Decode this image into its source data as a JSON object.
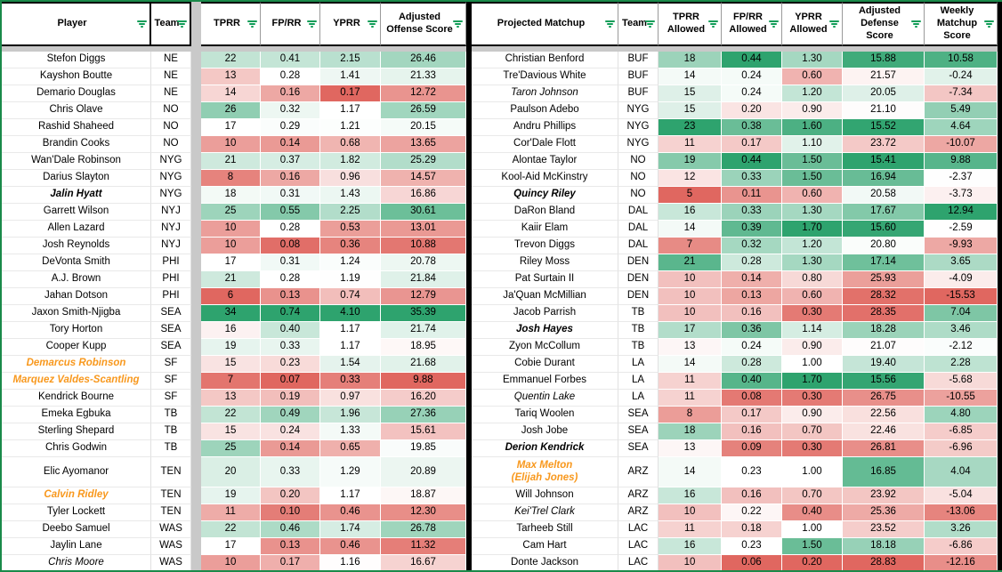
{
  "colors": {
    "scale_red": "#e06760",
    "scale_mid": "#ffffff",
    "scale_green": "#2ea36e",
    "filter_icon_green": "#0f9d58",
    "sheet_border_green": "#1a8a4a",
    "special_name_orange": "#f8981d",
    "pane_divider_gray": "#c9c9c9",
    "table_border_black": "#000000"
  },
  "left_table": {
    "title": "offense",
    "columns": [
      {
        "key": "player",
        "label": "Player",
        "type": "text"
      },
      {
        "key": "team",
        "label": "Team",
        "type": "text"
      },
      {
        "key": "tprr",
        "label": "TPRR",
        "type": "num"
      },
      {
        "key": "fprr",
        "label": "FP/RR",
        "type": "num"
      },
      {
        "key": "yprr",
        "label": "YPRR",
        "type": "num"
      },
      {
        "key": "aos",
        "label": "Adjusted Offense Score",
        "type": "num"
      }
    ],
    "rows": [
      {
        "player": "Stefon Diggs",
        "team": "NE",
        "tprr": "22",
        "fprr": "0.41",
        "yprr": "2.15",
        "aos": "26.46",
        "style": "normal"
      },
      {
        "player": "Kayshon Boutte",
        "team": "NE",
        "tprr": "13",
        "fprr": "0.28",
        "yprr": "1.41",
        "aos": "21.33",
        "style": "normal"
      },
      {
        "player": "Demario Douglas",
        "team": "NE",
        "tprr": "14",
        "fprr": "0.16",
        "yprr": "0.17",
        "aos": "12.72",
        "style": "normal"
      },
      {
        "player": "Chris Olave",
        "team": "NO",
        "tprr": "26",
        "fprr": "0.32",
        "yprr": "1.17",
        "aos": "26.59",
        "style": "normal"
      },
      {
        "player": "Rashid Shaheed",
        "team": "NO",
        "tprr": "17",
        "fprr": "0.29",
        "yprr": "1.21",
        "aos": "20.15",
        "style": "normal"
      },
      {
        "player": "Brandin Cooks",
        "team": "NO",
        "tprr": "10",
        "fprr": "0.14",
        "yprr": "0.68",
        "aos": "13.65",
        "style": "normal"
      },
      {
        "player": "Wan'Dale Robinson",
        "team": "NYG",
        "tprr": "21",
        "fprr": "0.37",
        "yprr": "1.82",
        "aos": "25.29",
        "style": "normal"
      },
      {
        "player": "Darius Slayton",
        "team": "NYG",
        "tprr": "8",
        "fprr": "0.16",
        "yprr": "0.96",
        "aos": "14.57",
        "style": "normal"
      },
      {
        "player": "Jalin Hyatt",
        "team": "NYG",
        "tprr": "18",
        "fprr": "0.31",
        "yprr": "1.43",
        "aos": "16.86",
        "style": "bold-italic"
      },
      {
        "player": "Garrett Wilson",
        "team": "NYJ",
        "tprr": "25",
        "fprr": "0.55",
        "yprr": "2.25",
        "aos": "30.61",
        "style": "normal"
      },
      {
        "player": "Allen Lazard",
        "team": "NYJ",
        "tprr": "10",
        "fprr": "0.28",
        "yprr": "0.53",
        "aos": "13.01",
        "style": "normal"
      },
      {
        "player": "Josh Reynolds",
        "team": "NYJ",
        "tprr": "10",
        "fprr": "0.08",
        "yprr": "0.36",
        "aos": "10.88",
        "style": "normal"
      },
      {
        "player": "DeVonta Smith",
        "team": "PHI",
        "tprr": "17",
        "fprr": "0.31",
        "yprr": "1.24",
        "aos": "20.78",
        "style": "normal"
      },
      {
        "player": "A.J. Brown",
        "team": "PHI",
        "tprr": "21",
        "fprr": "0.28",
        "yprr": "1.19",
        "aos": "21.84",
        "style": "normal"
      },
      {
        "player": "Jahan Dotson",
        "team": "PHI",
        "tprr": "6",
        "fprr": "0.13",
        "yprr": "0.74",
        "aos": "12.79",
        "style": "normal"
      },
      {
        "player": "Jaxon Smith-Njigba",
        "team": "SEA",
        "tprr": "34",
        "fprr": "0.74",
        "yprr": "4.10",
        "aos": "35.39",
        "style": "normal"
      },
      {
        "player": "Tory Horton",
        "team": "SEA",
        "tprr": "16",
        "fprr": "0.40",
        "yprr": "1.17",
        "aos": "21.74",
        "style": "normal"
      },
      {
        "player": "Cooper Kupp",
        "team": "SEA",
        "tprr": "19",
        "fprr": "0.33",
        "yprr": "1.17",
        "aos": "18.95",
        "style": "normal"
      },
      {
        "player": "Demarcus Robinson",
        "team": "SF",
        "tprr": "15",
        "fprr": "0.23",
        "yprr": "1.54",
        "aos": "21.68",
        "style": "orange-italic"
      },
      {
        "player": "Marquez Valdes-Scantling",
        "team": "SF",
        "tprr": "7",
        "fprr": "0.07",
        "yprr": "0.33",
        "aos": "9.88",
        "style": "orange-italic"
      },
      {
        "player": "Kendrick Bourne",
        "team": "SF",
        "tprr": "13",
        "fprr": "0.19",
        "yprr": "0.97",
        "aos": "16.20",
        "style": "normal"
      },
      {
        "player": "Emeka Egbuka",
        "team": "TB",
        "tprr": "22",
        "fprr": "0.49",
        "yprr": "1.96",
        "aos": "27.36",
        "style": "normal"
      },
      {
        "player": "Sterling Shepard",
        "team": "TB",
        "tprr": "15",
        "fprr": "0.24",
        "yprr": "1.33",
        "aos": "15.61",
        "style": "normal"
      },
      {
        "player": "Chris Godwin",
        "team": "TB",
        "tprr": "25",
        "fprr": "0.14",
        "yprr": "0.65",
        "aos": "19.85",
        "style": "normal"
      },
      {
        "player": "Elic Ayomanor",
        "team": "TEN",
        "tprr": "20",
        "fprr": "0.33",
        "yprr": "1.29",
        "aos": "20.89",
        "style": "normal",
        "tall": true
      },
      {
        "player": "Calvin Ridley",
        "team": "TEN",
        "tprr": "19",
        "fprr": "0.20",
        "yprr": "1.17",
        "aos": "18.87",
        "style": "orange-italic"
      },
      {
        "player": "Tyler Lockett",
        "team": "TEN",
        "tprr": "11",
        "fprr": "0.10",
        "yprr": "0.46",
        "aos": "12.30",
        "style": "normal"
      },
      {
        "player": "Deebo Samuel",
        "team": "WAS",
        "tprr": "22",
        "fprr": "0.46",
        "yprr": "1.74",
        "aos": "26.78",
        "style": "normal"
      },
      {
        "player": "Jaylin Lane",
        "team": "WAS",
        "tprr": "17",
        "fprr": "0.13",
        "yprr": "0.46",
        "aos": "11.32",
        "style": "normal"
      },
      {
        "player": "Chris Moore",
        "team": "WAS",
        "tprr": "10",
        "fprr": "0.17",
        "yprr": "1.16",
        "aos": "16.67",
        "style": "italic"
      }
    ]
  },
  "right_table": {
    "title": "defense",
    "columns": [
      {
        "key": "matchup",
        "label": "Projected Matchup",
        "type": "text"
      },
      {
        "key": "team",
        "label": "Team",
        "type": "text"
      },
      {
        "key": "tprr",
        "label": "TPRR Allowed",
        "type": "num"
      },
      {
        "key": "fprr",
        "label": "FP/RR Allowed",
        "type": "num"
      },
      {
        "key": "yprr",
        "label": "YPRR Allowed",
        "type": "num"
      },
      {
        "key": "ads",
        "label": "Adjusted Defense Score",
        "type": "num",
        "invert": true
      },
      {
        "key": "wms",
        "label": "Weekly Matchup Score",
        "type": "num"
      }
    ],
    "rows": [
      {
        "matchup": "Christian Benford",
        "team": "BUF",
        "tprr": "18",
        "fprr": "0.44",
        "yprr": "1.30",
        "ads": "15.88",
        "wms": "10.58",
        "style": "normal"
      },
      {
        "matchup": "Tre'Davious White",
        "team": "BUF",
        "tprr": "14",
        "fprr": "0.24",
        "yprr": "0.60",
        "ads": "21.57",
        "wms": "-0.24",
        "style": "normal"
      },
      {
        "matchup": "Taron Johnson",
        "team": "BUF",
        "tprr": "15",
        "fprr": "0.24",
        "yprr": "1.20",
        "ads": "20.05",
        "wms": "-7.34",
        "style": "italic"
      },
      {
        "matchup": "Paulson Adebo",
        "team": "NYG",
        "tprr": "15",
        "fprr": "0.20",
        "yprr": "0.90",
        "ads": "21.10",
        "wms": "5.49",
        "style": "normal"
      },
      {
        "matchup": "Andru Phillips",
        "team": "NYG",
        "tprr": "23",
        "fprr": "0.38",
        "yprr": "1.60",
        "ads": "15.52",
        "wms": "4.64",
        "style": "normal"
      },
      {
        "matchup": "Cor'Dale Flott",
        "team": "NYG",
        "tprr": "11",
        "fprr": "0.17",
        "yprr": "1.10",
        "ads": "23.72",
        "wms": "-10.07",
        "style": "normal"
      },
      {
        "matchup": "Alontae Taylor",
        "team": "NO",
        "tprr": "19",
        "fprr": "0.44",
        "yprr": "1.50",
        "ads": "15.41",
        "wms": "9.88",
        "style": "normal"
      },
      {
        "matchup": "Kool-Aid McKinstry",
        "team": "NO",
        "tprr": "12",
        "fprr": "0.33",
        "yprr": "1.50",
        "ads": "16.94",
        "wms": "-2.37",
        "style": "normal"
      },
      {
        "matchup": "Quincy Riley",
        "team": "NO",
        "tprr": "5",
        "fprr": "0.11",
        "yprr": "0.60",
        "ads": "20.58",
        "wms": "-3.73",
        "style": "bold-italic"
      },
      {
        "matchup": "DaRon Bland",
        "team": "DAL",
        "tprr": "16",
        "fprr": "0.33",
        "yprr": "1.30",
        "ads": "17.67",
        "wms": "12.94",
        "style": "normal"
      },
      {
        "matchup": "Kaiir Elam",
        "team": "DAL",
        "tprr": "14",
        "fprr": "0.39",
        "yprr": "1.70",
        "ads": "15.60",
        "wms": "-2.59",
        "style": "normal"
      },
      {
        "matchup": "Trevon Diggs",
        "team": "DAL",
        "tprr": "7",
        "fprr": "0.32",
        "yprr": "1.20",
        "ads": "20.80",
        "wms": "-9.93",
        "style": "normal"
      },
      {
        "matchup": "Riley Moss",
        "team": "DEN",
        "tprr": "21",
        "fprr": "0.28",
        "yprr": "1.30",
        "ads": "17.14",
        "wms": "3.65",
        "style": "normal"
      },
      {
        "matchup": "Pat Surtain II",
        "team": "DEN",
        "tprr": "10",
        "fprr": "0.14",
        "yprr": "0.80",
        "ads": "25.93",
        "wms": "-4.09",
        "style": "normal"
      },
      {
        "matchup": "Ja'Quan McMillian",
        "team": "DEN",
        "tprr": "10",
        "fprr": "0.13",
        "yprr": "0.60",
        "ads": "28.32",
        "wms": "-15.53",
        "style": "normal"
      },
      {
        "matchup": "Jacob Parrish",
        "team": "TB",
        "tprr": "10",
        "fprr": "0.16",
        "yprr": "0.30",
        "ads": "28.35",
        "wms": "7.04",
        "style": "normal"
      },
      {
        "matchup": "Josh Hayes",
        "team": "TB",
        "tprr": "17",
        "fprr": "0.36",
        "yprr": "1.14",
        "ads": "18.28",
        "wms": "3.46",
        "style": "bold-italic"
      },
      {
        "matchup": "Zyon McCollum",
        "team": "TB",
        "tprr": "13",
        "fprr": "0.24",
        "yprr": "0.90",
        "ads": "21.07",
        "wms": "-2.12",
        "style": "normal"
      },
      {
        "matchup": "Cobie Durant",
        "team": "LA",
        "tprr": "14",
        "fprr": "0.28",
        "yprr": "1.00",
        "ads": "19.40",
        "wms": "2.28",
        "style": "normal"
      },
      {
        "matchup": "Emmanuel Forbes",
        "team": "LA",
        "tprr": "11",
        "fprr": "0.40",
        "yprr": "1.70",
        "ads": "15.56",
        "wms": "-5.68",
        "style": "normal"
      },
      {
        "matchup": "Quentin Lake",
        "team": "LA",
        "tprr": "11",
        "fprr": "0.08",
        "yprr": "0.30",
        "ads": "26.75",
        "wms": "-10.55",
        "style": "italic"
      },
      {
        "matchup": "Tariq Woolen",
        "team": "SEA",
        "tprr": "8",
        "fprr": "0.17",
        "yprr": "0.90",
        "ads": "22.56",
        "wms": "4.80",
        "style": "normal"
      },
      {
        "matchup": "Josh Jobe",
        "team": "SEA",
        "tprr": "18",
        "fprr": "0.16",
        "yprr": "0.70",
        "ads": "22.46",
        "wms": "-6.85",
        "style": "normal"
      },
      {
        "matchup": "Derion Kendrick",
        "team": "SEA",
        "tprr": "13",
        "fprr": "0.09",
        "yprr": "0.30",
        "ads": "26.81",
        "wms": "-6.96",
        "style": "bold-italic"
      },
      {
        "matchup": "Max Melton\n(Elijah Jones)",
        "team": "ARZ",
        "tprr": "14",
        "fprr": "0.23",
        "yprr": "1.00",
        "ads": "16.85",
        "wms": "4.04",
        "style": "orange-italic",
        "tall": true
      },
      {
        "matchup": "Will Johnson",
        "team": "ARZ",
        "tprr": "16",
        "fprr": "0.16",
        "yprr": "0.70",
        "ads": "23.92",
        "wms": "-5.04",
        "style": "normal"
      },
      {
        "matchup": "Kei'Trel Clark",
        "team": "ARZ",
        "tprr": "10",
        "fprr": "0.22",
        "yprr": "0.40",
        "ads": "25.36",
        "wms": "-13.06",
        "style": "italic"
      },
      {
        "matchup": "Tarheeb Still",
        "team": "LAC",
        "tprr": "11",
        "fprr": "0.18",
        "yprr": "1.00",
        "ads": "23.52",
        "wms": "3.26",
        "style": "normal"
      },
      {
        "matchup": "Cam Hart",
        "team": "LAC",
        "tprr": "16",
        "fprr": "0.23",
        "yprr": "1.50",
        "ads": "18.18",
        "wms": "-6.86",
        "style": "normal"
      },
      {
        "matchup": "Donte Jackson",
        "team": "LAC",
        "tprr": "10",
        "fprr": "0.06",
        "yprr": "0.20",
        "ads": "28.83",
        "wms": "-12.16",
        "style": "normal"
      }
    ]
  }
}
